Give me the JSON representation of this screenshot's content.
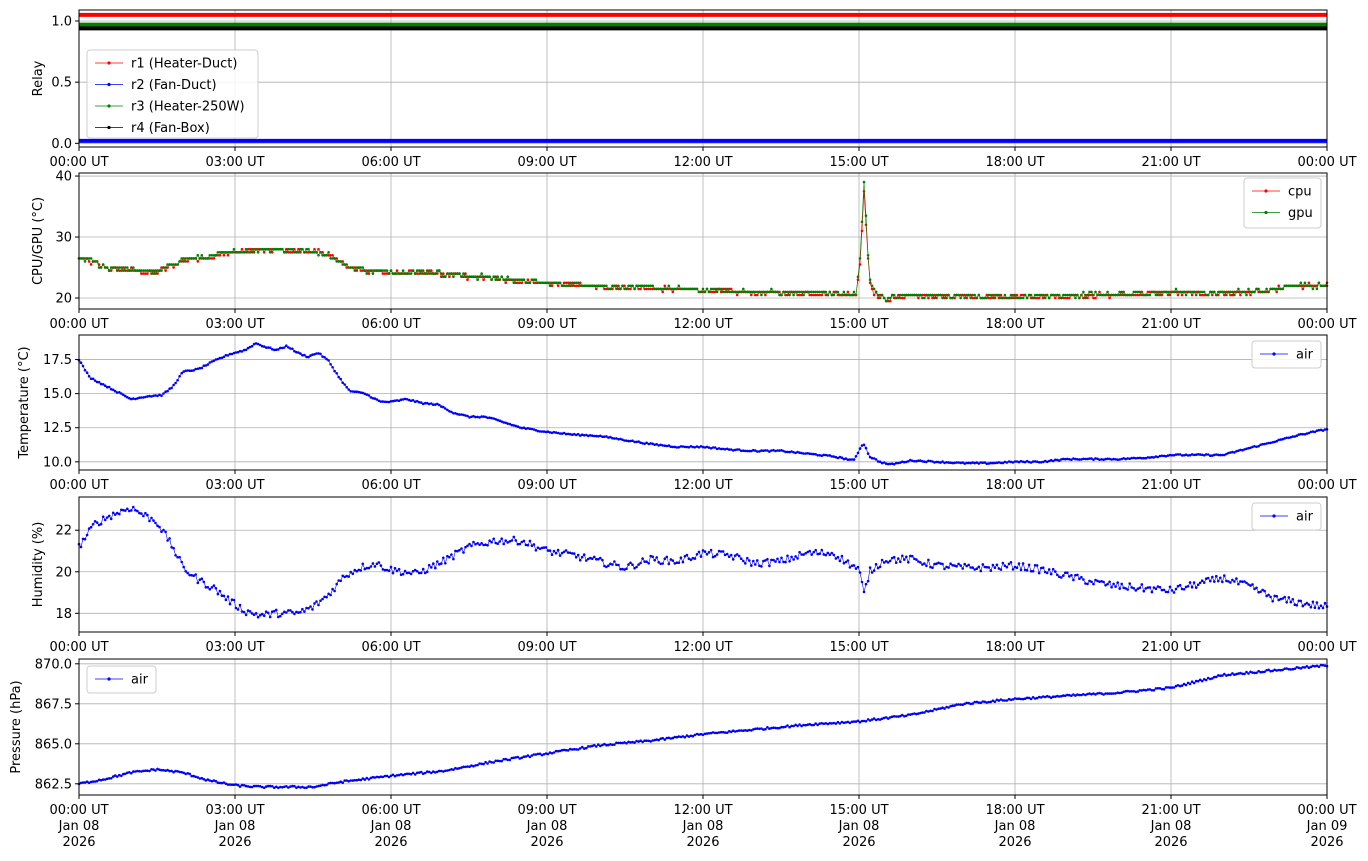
{
  "chart_data": [
    {
      "type": "line",
      "ylabel": "Relay",
      "xlim": [
        "00:00 UT",
        "00:00 UT +1d"
      ],
      "ylim": [
        -0.03,
        1.09
      ],
      "yticks": [
        0.0,
        0.5,
        1.0
      ],
      "ytick_labels": [
        "0.0",
        "0.5",
        "1.0"
      ],
      "xtick_labels": [
        "00:00 UT",
        "03:00 UT",
        "06:00 UT",
        "09:00 UT",
        "12:00 UT",
        "15:00 UT",
        "18:00 UT",
        "21:00 UT",
        "00:00 UT"
      ],
      "grid": true,
      "legend_position": "center-left",
      "series": [
        {
          "name": "r1 (Heater-Duct)",
          "color": "#ff0000",
          "x_hours": [
            0,
            24
          ],
          "values": [
            1.05,
            1.05
          ]
        },
        {
          "name": "r2 (Fan-Duct)",
          "color": "#0000ff",
          "x_hours": [
            0,
            24
          ],
          "values": [
            0.02,
            0.02
          ]
        },
        {
          "name": "r3 (Heater-250W)",
          "color": "#008000",
          "x_hours": [
            0,
            24
          ],
          "values": [
            0.97,
            0.97
          ]
        },
        {
          "name": "r4 (Fan-Box)",
          "color": "#000000",
          "x_hours": [
            0,
            24
          ],
          "values": [
            0.94,
            0.94
          ]
        }
      ]
    },
    {
      "type": "line",
      "ylabel": "CPU/GPU (°C)",
      "ylim": [
        18.2,
        40.5
      ],
      "yticks": [
        20,
        30,
        40
      ],
      "ytick_labels": [
        "20",
        "30",
        "40"
      ],
      "xtick_labels": [
        "00:00 UT",
        "03:00 UT",
        "06:00 UT",
        "09:00 UT",
        "12:00 UT",
        "15:00 UT",
        "18:00 UT",
        "21:00 UT",
        "00:00 UT"
      ],
      "grid": true,
      "legend_position": "top-right",
      "series": [
        {
          "name": "cpu",
          "color": "#ff0000",
          "x_hours": [
            0,
            0.3,
            0.5,
            1.0,
            1.5,
            2.0,
            2.5,
            3.0,
            3.5,
            4.0,
            4.5,
            4.8,
            5.2,
            5.6,
            6.0,
            6.5,
            7.0,
            8.0,
            9.0,
            10.0,
            11.0,
            12.0,
            13.0,
            14.0,
            14.95,
            15.02,
            15.07,
            15.1,
            15.15,
            15.2,
            15.3,
            15.5,
            16.0,
            17.0,
            18.0,
            19.0,
            20.0,
            21.0,
            22.0,
            22.8,
            23.3,
            24.0
          ],
          "values": [
            26.5,
            25.8,
            25.0,
            24.5,
            24.2,
            26.2,
            26.7,
            27.5,
            27.9,
            27.8,
            27.6,
            27.1,
            25.0,
            24.3,
            24.2,
            24.1,
            23.9,
            23.2,
            22.3,
            21.9,
            21.6,
            21.2,
            20.9,
            20.8,
            20.5,
            26.0,
            33.0,
            38.0,
            30.0,
            23.0,
            20.8,
            19.8,
            20.4,
            20.2,
            20.1,
            20.3,
            20.5,
            20.9,
            20.8,
            21.0,
            21.9,
            22.0
          ]
        },
        {
          "name": "gpu",
          "color": "#008000",
          "x_hours": [
            0,
            0.3,
            0.5,
            1.0,
            1.5,
            2.0,
            2.5,
            3.0,
            3.5,
            4.0,
            4.5,
            4.8,
            5.2,
            5.6,
            6.0,
            6.5,
            7.0,
            8.0,
            9.0,
            10.0,
            11.0,
            12.0,
            13.0,
            14.0,
            14.95,
            15.02,
            15.07,
            15.1,
            15.15,
            15.2,
            15.3,
            15.5,
            16.0,
            17.0,
            18.0,
            19.0,
            20.0,
            21.0,
            22.0,
            22.8,
            23.3,
            24.0
          ],
          "values": [
            26.6,
            25.9,
            25.1,
            24.6,
            24.3,
            26.3,
            26.8,
            27.6,
            28.0,
            27.9,
            27.7,
            27.2,
            25.1,
            24.4,
            24.3,
            24.2,
            24.0,
            23.3,
            22.4,
            22.0,
            21.7,
            21.3,
            21.0,
            20.9,
            20.6,
            26.5,
            34.0,
            39.5,
            31.0,
            23.5,
            20.9,
            19.9,
            20.5,
            20.3,
            20.2,
            20.4,
            20.6,
            21.0,
            20.9,
            21.1,
            22.0,
            22.1
          ]
        }
      ]
    },
    {
      "type": "line",
      "ylabel": "Temperature (°C)",
      "ylim": [
        9.4,
        19.3
      ],
      "yticks": [
        10.0,
        12.5,
        15.0,
        17.5
      ],
      "ytick_labels": [
        "10.0",
        "12.5",
        "15.0",
        "17.5"
      ],
      "xtick_labels": [
        "00:00 UT",
        "03:00 UT",
        "06:00 UT",
        "09:00 UT",
        "12:00 UT",
        "15:00 UT",
        "18:00 UT",
        "21:00 UT",
        "00:00 UT"
      ],
      "grid": true,
      "legend_position": "top-right",
      "series": [
        {
          "name": "air",
          "color": "#0000ff",
          "x_hours": [
            0,
            0.2,
            0.4,
            0.7,
            1.0,
            1.3,
            1.6,
            1.8,
            2.0,
            2.3,
            2.6,
            2.9,
            3.2,
            3.4,
            3.6,
            3.8,
            4.0,
            4.2,
            4.4,
            4.6,
            4.8,
            5.0,
            5.2,
            5.5,
            5.8,
            6.0,
            6.3,
            6.6,
            6.9,
            7.2,
            7.5,
            7.8,
            8.0,
            8.5,
            9.0,
            9.5,
            10.0,
            10.5,
            11.0,
            11.5,
            12.0,
            12.5,
            13.0,
            13.5,
            14.0,
            14.5,
            14.9,
            15.05,
            15.1,
            15.2,
            15.4,
            15.6,
            16.0,
            16.5,
            17.0,
            17.5,
            18.0,
            18.5,
            19.0,
            19.5,
            20.0,
            20.5,
            21.0,
            21.5,
            22.0,
            22.5,
            23.0,
            23.5,
            24.0
          ],
          "values": [
            17.5,
            16.2,
            15.8,
            15.2,
            14.6,
            14.8,
            14.9,
            15.5,
            16.6,
            16.8,
            17.4,
            17.9,
            18.2,
            18.7,
            18.4,
            18.2,
            18.5,
            18.0,
            17.7,
            18.0,
            17.4,
            16.2,
            15.2,
            15.0,
            14.4,
            14.4,
            14.6,
            14.3,
            14.2,
            13.6,
            13.3,
            13.3,
            13.1,
            12.5,
            12.2,
            12.0,
            11.9,
            11.6,
            11.3,
            11.1,
            11.1,
            10.9,
            10.8,
            10.8,
            10.6,
            10.4,
            10.1,
            11.2,
            11.3,
            10.4,
            10.0,
            9.8,
            10.1,
            10.0,
            9.9,
            9.9,
            10.0,
            10.0,
            10.2,
            10.2,
            10.2,
            10.3,
            10.5,
            10.5,
            10.5,
            11.0,
            11.5,
            12.0,
            12.4
          ]
        }
      ]
    },
    {
      "type": "scatter",
      "ylabel": "Humidity (%)",
      "ylim": [
        17.1,
        23.6
      ],
      "yticks": [
        18,
        20,
        22
      ],
      "ytick_labels": [
        "18",
        "20",
        "22"
      ],
      "xtick_labels": [
        "00:00 UT",
        "03:00 UT",
        "06:00 UT",
        "09:00 UT",
        "12:00 UT",
        "15:00 UT",
        "18:00 UT",
        "21:00 UT",
        "00:00 UT"
      ],
      "grid": true,
      "legend_position": "top-right",
      "series": [
        {
          "name": "air",
          "color": "#0000ff",
          "x_hours": [
            0,
            0.3,
            0.6,
            1.0,
            1.2,
            1.5,
            1.8,
            2.0,
            2.3,
            2.6,
            2.9,
            3.2,
            3.5,
            3.8,
            4.2,
            4.5,
            4.8,
            5.1,
            5.4,
            5.7,
            6.0,
            6.5,
            7.0,
            7.5,
            8.0,
            8.5,
            9.0,
            9.5,
            10.0,
            10.5,
            11.0,
            11.5,
            12.0,
            12.5,
            13.0,
            13.5,
            14.0,
            14.5,
            14.8,
            15.0,
            15.1,
            15.2,
            15.5,
            16.0,
            16.5,
            17.0,
            17.5,
            18.0,
            18.5,
            19.0,
            19.5,
            20.0,
            20.5,
            21.0,
            21.5,
            22.0,
            22.5,
            23.0,
            23.5,
            24.0
          ],
          "values": [
            21.2,
            22.3,
            22.7,
            23.1,
            22.8,
            22.4,
            21.2,
            20.2,
            19.6,
            19.2,
            18.6,
            18.1,
            17.9,
            18.0,
            18.0,
            18.3,
            18.9,
            19.8,
            20.2,
            20.4,
            20.1,
            19.9,
            20.5,
            21.2,
            21.5,
            21.5,
            21.0,
            20.8,
            20.5,
            20.2,
            20.6,
            20.5,
            20.9,
            20.8,
            20.4,
            20.5,
            20.9,
            20.9,
            20.4,
            20.1,
            18.9,
            20.0,
            20.6,
            20.6,
            20.3,
            20.2,
            20.2,
            20.3,
            20.1,
            19.8,
            19.5,
            19.3,
            19.2,
            19.1,
            19.4,
            19.7,
            19.3,
            18.7,
            18.5,
            18.3
          ]
        }
      ]
    },
    {
      "type": "scatter",
      "ylabel": "Pressure (hPa)",
      "ylim": [
        861.8,
        870.3
      ],
      "yticks": [
        862.5,
        865.0,
        867.5,
        870.0
      ],
      "ytick_labels": [
        "862.5",
        "865.0",
        "867.5",
        "870.0"
      ],
      "xtick_labels": [
        "00:00 UT\nJan 08\n2026",
        "03:00 UT\nJan 08\n2026",
        "06:00 UT\nJan 08\n2026",
        "09:00 UT\nJan 08\n2026",
        "12:00 UT\nJan 08\n2026",
        "15:00 UT\nJan 08\n2026",
        "18:00 UT\nJan 08\n2026",
        "21:00 UT\nJan 08\n2026",
        "00:00 UT\nJan 09\n2026"
      ],
      "grid": true,
      "legend_position": "top-left",
      "series": [
        {
          "name": "air",
          "color": "#0000ff",
          "x_hours": [
            0,
            0.5,
            1.0,
            1.5,
            2.0,
            2.5,
            3.0,
            3.5,
            4.0,
            4.5,
            5.0,
            5.5,
            6.0,
            7.0,
            8.0,
            9.0,
            10.0,
            11.0,
            12.0,
            13.0,
            14.0,
            15.0,
            16.0,
            17.0,
            18.0,
            19.0,
            20.0,
            21.0,
            22.0,
            23.0,
            24.0
          ],
          "values": [
            862.5,
            862.8,
            863.2,
            863.4,
            863.2,
            862.7,
            862.4,
            862.3,
            862.3,
            862.3,
            862.6,
            862.8,
            863.0,
            863.3,
            863.9,
            864.4,
            864.9,
            865.2,
            865.6,
            865.9,
            866.2,
            866.4,
            866.8,
            867.5,
            867.8,
            868.0,
            868.2,
            868.5,
            869.3,
            869.6,
            869.9
          ]
        }
      ]
    }
  ]
}
